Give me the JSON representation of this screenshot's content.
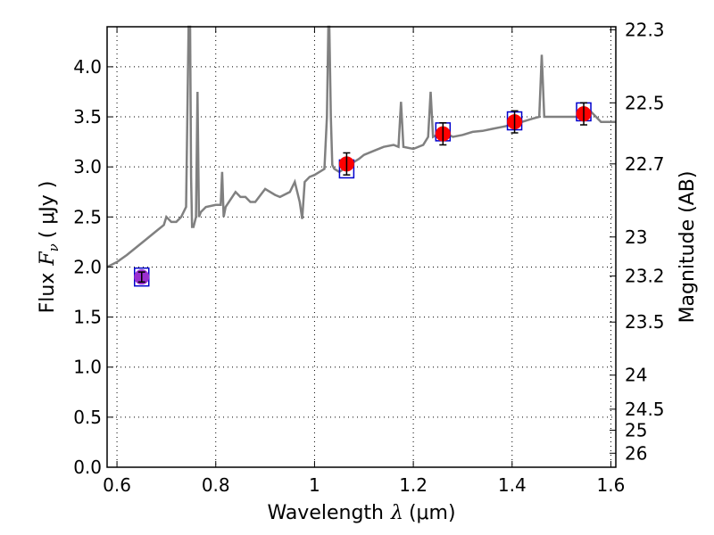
{
  "chart_data": {
    "type": "line",
    "xlabel": "Wavelength",
    "xlabel_symbol": "λ",
    "xlabel_unit": "(μm)",
    "ylabel": "Flux",
    "ylabel_symbol": "F",
    "ylabel_subscript": "ν",
    "ylabel_unit": "( μJy )",
    "y2label": "Magnitude (AB)",
    "xlim": [
      0.58,
      1.61
    ],
    "ylim": [
      0.0,
      4.4
    ],
    "x_ticks": [
      0.6,
      0.8,
      1.0,
      1.2,
      1.4,
      1.6
    ],
    "x_tick_labels": [
      "0.6",
      "0.8",
      "1",
      "1.2",
      "1.4",
      "1.6"
    ],
    "y_ticks": [
      0.0,
      0.5,
      1.0,
      1.5,
      2.0,
      2.5,
      3.0,
      3.5,
      4.0
    ],
    "y_tick_labels": [
      "0.0",
      "0.5",
      "1.0",
      "1.5",
      "2.0",
      "2.5",
      "3.0",
      "3.5",
      "4.0"
    ],
    "y2_ticks": [
      {
        "label": "22.3",
        "flux": 4.37
      },
      {
        "label": "22.5",
        "flux": 3.64
      },
      {
        "label": "22.7",
        "flux": 3.03
      },
      {
        "label": "23",
        "flux": 2.3
      },
      {
        "label": "23.2",
        "flux": 1.91
      },
      {
        "label": "23.5",
        "flux": 1.45
      },
      {
        "label": "24",
        "flux": 0.92
      },
      {
        "label": "24.5",
        "flux": 0.58
      },
      {
        "label": "25",
        "flux": 0.37
      },
      {
        "label": "26",
        "flux": 0.14
      }
    ],
    "grid": true,
    "colors": {
      "model": "#808080",
      "photometry_fill": "#ff0000",
      "photometry_edge": "#ff0000",
      "photometry_first": "#9b30d0",
      "box_edge": "#0000cc",
      "errorbar": "#000000"
    },
    "model_spectrum": {
      "x": [
        0.58,
        0.6,
        0.62,
        0.64,
        0.66,
        0.68,
        0.695,
        0.7,
        0.71,
        0.72,
        0.73,
        0.74,
        0.745,
        0.748,
        0.75,
        0.752,
        0.755,
        0.76,
        0.763,
        0.766,
        0.77,
        0.78,
        0.8,
        0.81,
        0.813,
        0.816,
        0.82,
        0.84,
        0.85,
        0.86,
        0.87,
        0.88,
        0.9,
        0.92,
        0.93,
        0.95,
        0.96,
        0.97,
        0.975,
        0.98,
        0.99,
        1.0,
        1.01,
        1.02,
        1.025,
        1.028,
        1.03,
        1.033,
        1.036,
        1.04,
        1.05,
        1.06,
        1.07,
        1.08,
        1.09,
        1.1,
        1.12,
        1.14,
        1.16,
        1.17,
        1.175,
        1.18,
        1.2,
        1.22,
        1.23,
        1.235,
        1.24,
        1.26,
        1.28,
        1.3,
        1.32,
        1.34,
        1.36,
        1.38,
        1.4,
        1.42,
        1.44,
        1.455,
        1.46,
        1.465,
        1.48,
        1.5,
        1.52,
        1.54,
        1.56,
        1.58,
        1.6,
        1.61
      ],
      "y": [
        2.0,
        2.05,
        2.12,
        2.2,
        2.28,
        2.36,
        2.42,
        2.5,
        2.45,
        2.45,
        2.5,
        2.6,
        4.4,
        4.4,
        2.9,
        2.4,
        2.4,
        2.5,
        3.75,
        2.5,
        2.55,
        2.6,
        2.62,
        2.62,
        2.95,
        2.5,
        2.6,
        2.75,
        2.7,
        2.7,
        2.65,
        2.65,
        2.78,
        2.72,
        2.7,
        2.75,
        2.85,
        2.65,
        2.48,
        2.85,
        2.9,
        2.92,
        2.95,
        2.98,
        3.5,
        4.4,
        4.4,
        3.5,
        3.02,
        2.98,
        2.95,
        2.98,
        3.0,
        3.05,
        3.08,
        3.12,
        3.16,
        3.2,
        3.22,
        3.2,
        3.65,
        3.2,
        3.18,
        3.22,
        3.3,
        3.75,
        3.3,
        3.35,
        3.3,
        3.32,
        3.35,
        3.36,
        3.38,
        3.4,
        3.42,
        3.45,
        3.48,
        3.5,
        4.12,
        3.5,
        3.5,
        3.5,
        3.5,
        3.5,
        3.55,
        3.45,
        3.45,
        3.45
      ]
    },
    "photometry": [
      {
        "x": 0.65,
        "y": 1.9,
        "err": 0.05,
        "model_y": 1.9
      },
      {
        "x": 1.065,
        "y": 3.03,
        "err": 0.11,
        "model_y": 2.98
      },
      {
        "x": 1.26,
        "y": 3.33,
        "err": 0.11,
        "model_y": 3.35
      },
      {
        "x": 1.405,
        "y": 3.45,
        "err": 0.11,
        "model_y": 3.46
      },
      {
        "x": 1.545,
        "y": 3.53,
        "err": 0.11,
        "model_y": 3.55
      }
    ]
  }
}
